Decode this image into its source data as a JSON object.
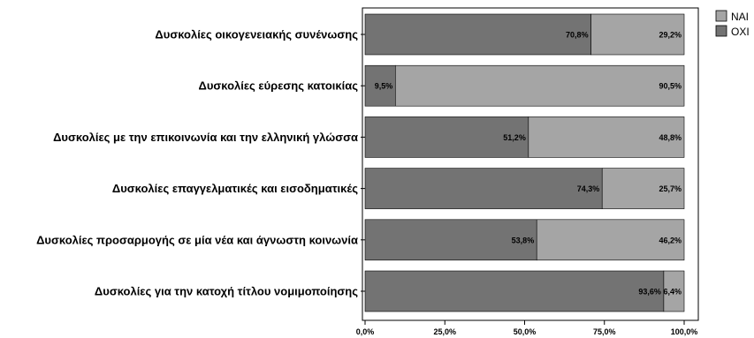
{
  "chart_data": {
    "type": "bar",
    "orientation": "horizontal",
    "stacked": true,
    "categories": [
      "Δυσκολίες οικογενειακής συνένωσης",
      "Δυσκολίες εύρεσης κατοικίας",
      "Δυσκολίες με την επικοινωνία και την ελληνική γλώσσα",
      "Δυσκολίες επαγγελματικές και εισοδηματικές",
      "Δυσκολίες προσαρμογής σε μία νέα και άγνωστη κοινωνία",
      "Δυσκολίες για την κατοχή τίτλου νομιμοποίησης"
    ],
    "series": [
      {
        "name": "ΟΧΙ",
        "color": "#737373",
        "values": [
          70.8,
          9.5,
          51.2,
          74.3,
          53.8,
          93.6
        ],
        "labels": [
          "70,8%",
          "9,5%",
          "51,2%",
          "74,3%",
          "53,8%",
          "93,6%"
        ]
      },
      {
        "name": "ΝΑΙ",
        "color": "#a5a5a5",
        "values": [
          29.2,
          90.5,
          48.8,
          25.7,
          46.2,
          6.4
        ],
        "labels": [
          "29,2%",
          "90,5%",
          "48,8%",
          "25,7%",
          "46,2%",
          "6,4%"
        ]
      }
    ],
    "xlim": [
      0,
      100
    ],
    "xticks": [
      0,
      25,
      50,
      75,
      100
    ],
    "xtick_labels": [
      "0,0%",
      "25,0%",
      "50,0%",
      "75,0%",
      "100,0%"
    ],
    "legend": {
      "position": "top-right",
      "order": [
        "ΝΑΙ",
        "ΟΧΙ"
      ]
    },
    "grid": false
  }
}
